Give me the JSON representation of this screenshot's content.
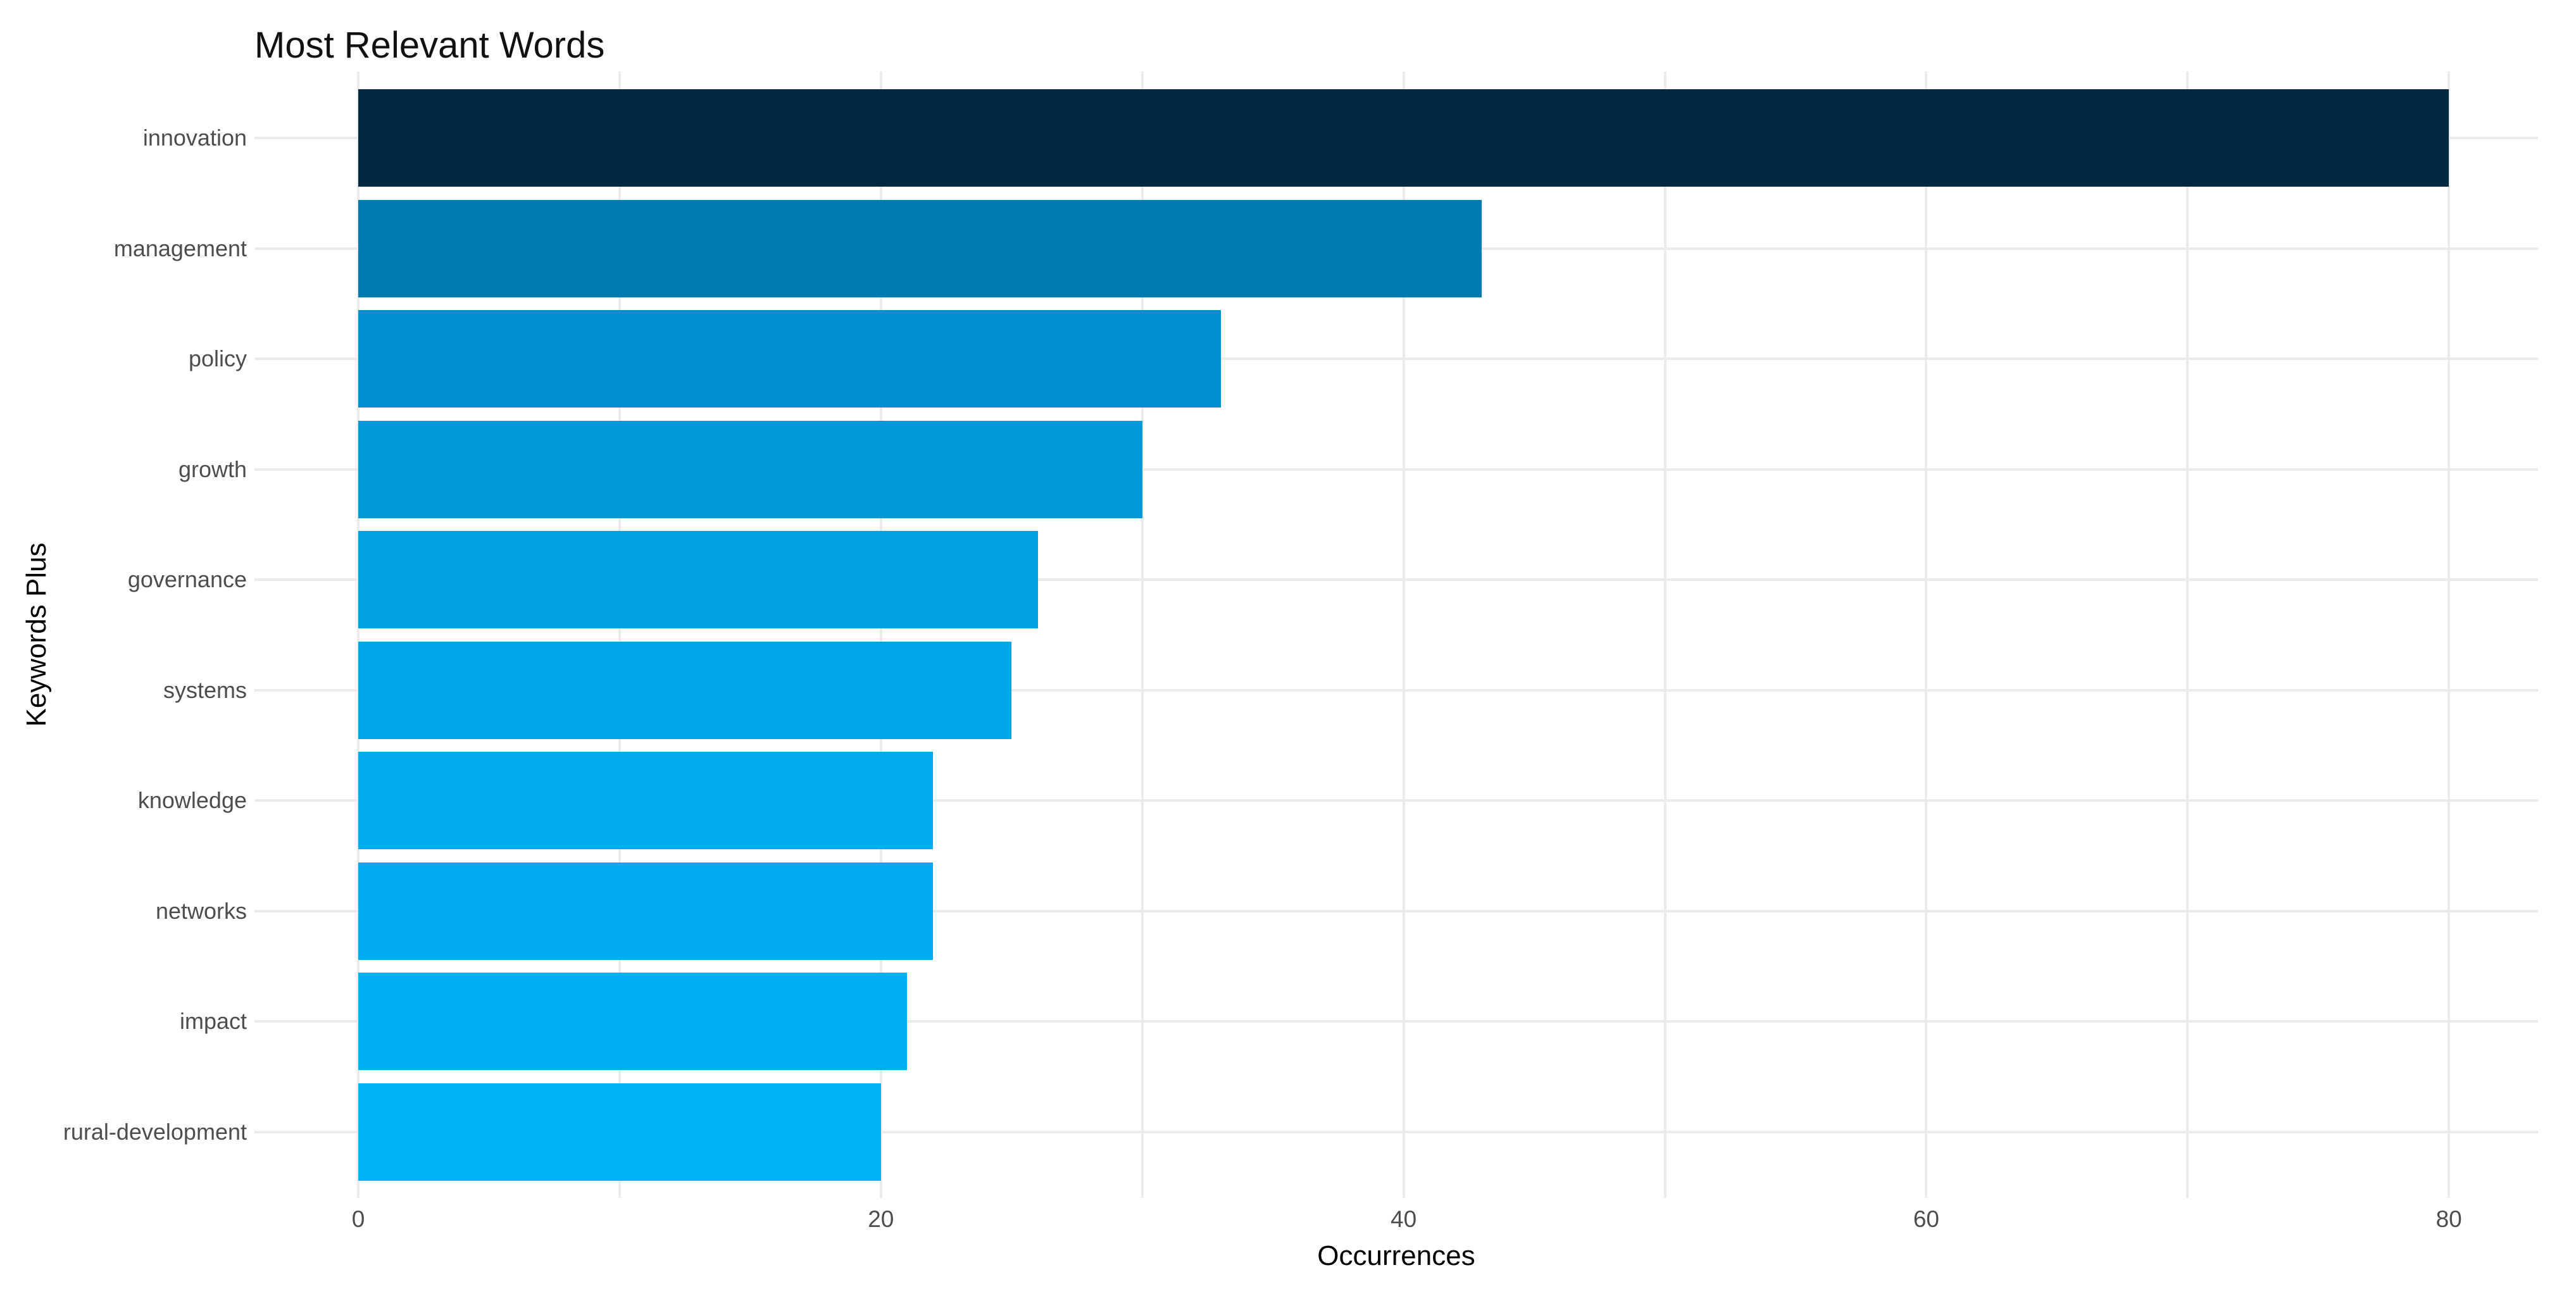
{
  "chart_data": {
    "type": "bar",
    "orientation": "horizontal",
    "title": "Most Relevant Words",
    "xlabel": "Occurrences",
    "ylabel": "Keywords Plus",
    "categories": [
      "innovation",
      "management",
      "policy",
      "growth",
      "governance",
      "systems",
      "knowledge",
      "networks",
      "impact",
      "rural-development"
    ],
    "values": [
      80,
      43,
      33,
      30,
      26,
      25,
      22,
      22,
      21,
      20
    ],
    "bar_colors": [
      "#032940",
      "#007bb1",
      "#0090cf",
      "#0098d8",
      "#01a1e2",
      "#02a5e8",
      "#02aaee",
      "#02abef",
      "#01aff3",
      "#00b2f7"
    ],
    "xlim": [
      0,
      80
    ],
    "x_tick_labels": [
      "0",
      "20",
      "40",
      "60",
      "80"
    ],
    "x_tick_values": [
      0,
      20,
      40,
      60,
      80
    ],
    "x_grid_values": [
      0,
      10,
      20,
      30,
      40,
      50,
      60,
      70,
      80
    ],
    "grid": "on",
    "legend": "none",
    "colors": {
      "background": "#ffffff",
      "gridline": "#ebebeb",
      "axis_text": "#4d4d4d",
      "title_text": "#111111",
      "axis_title_text": "#000000"
    }
  }
}
